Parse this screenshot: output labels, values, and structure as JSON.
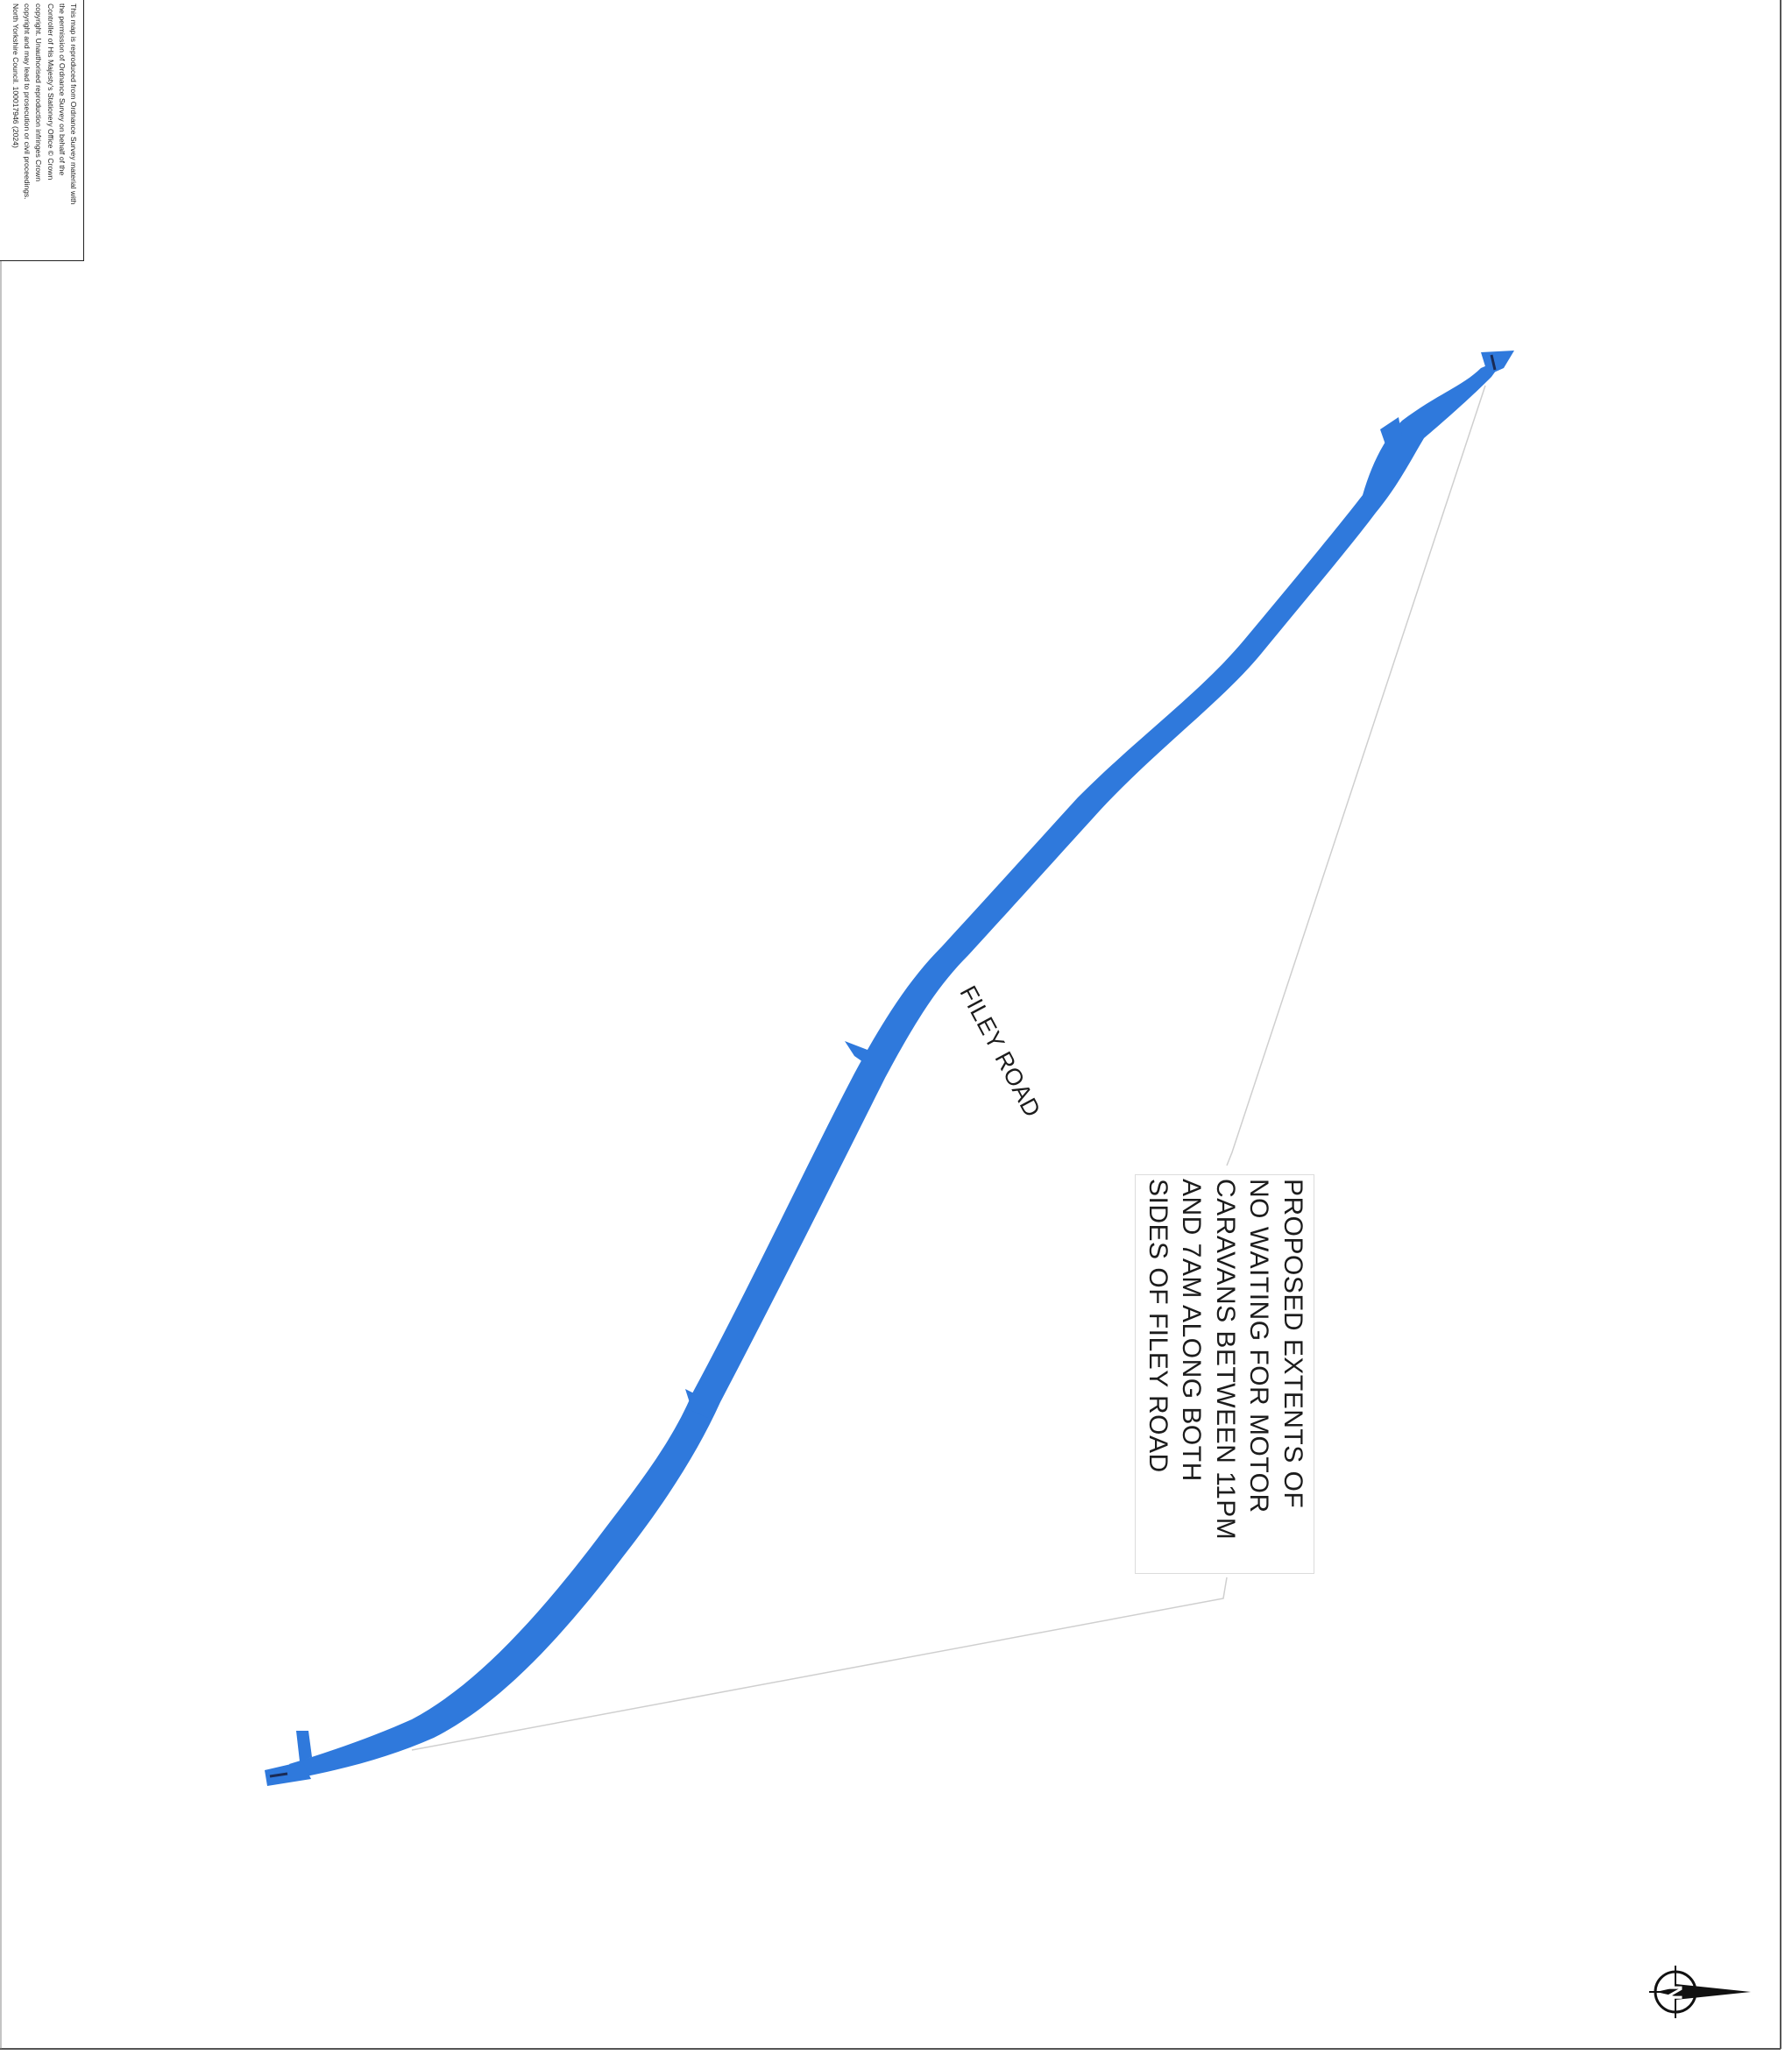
{
  "map": {
    "copyright_notice": "This map is reproduced from Ordnance Survey material with\nthe permission of Ordnance Survey on behalf of the\nController of His Majesty's Stationery Office © Crown\ncopyright. Unauthorised reproduction infringes Crown\ncopyright and may lead to prosecution or civil proceedings.\nNorth Yorkshire Council. 100017946 (2024)",
    "road_name": "FILEY ROAD",
    "callout": "PROPOSED EXTENTS OF\nNO WAITING FOR MOTOR\nCARAVANS BETWEEN 11PM\nAND 7AM ALONG BOTH\nSIDES OF FILEY ROAD",
    "north_arrow_label": "N",
    "colors": {
      "restriction_fill": "#2f79dc",
      "leader_line": "#c8c8c8",
      "border": "#222222"
    }
  }
}
